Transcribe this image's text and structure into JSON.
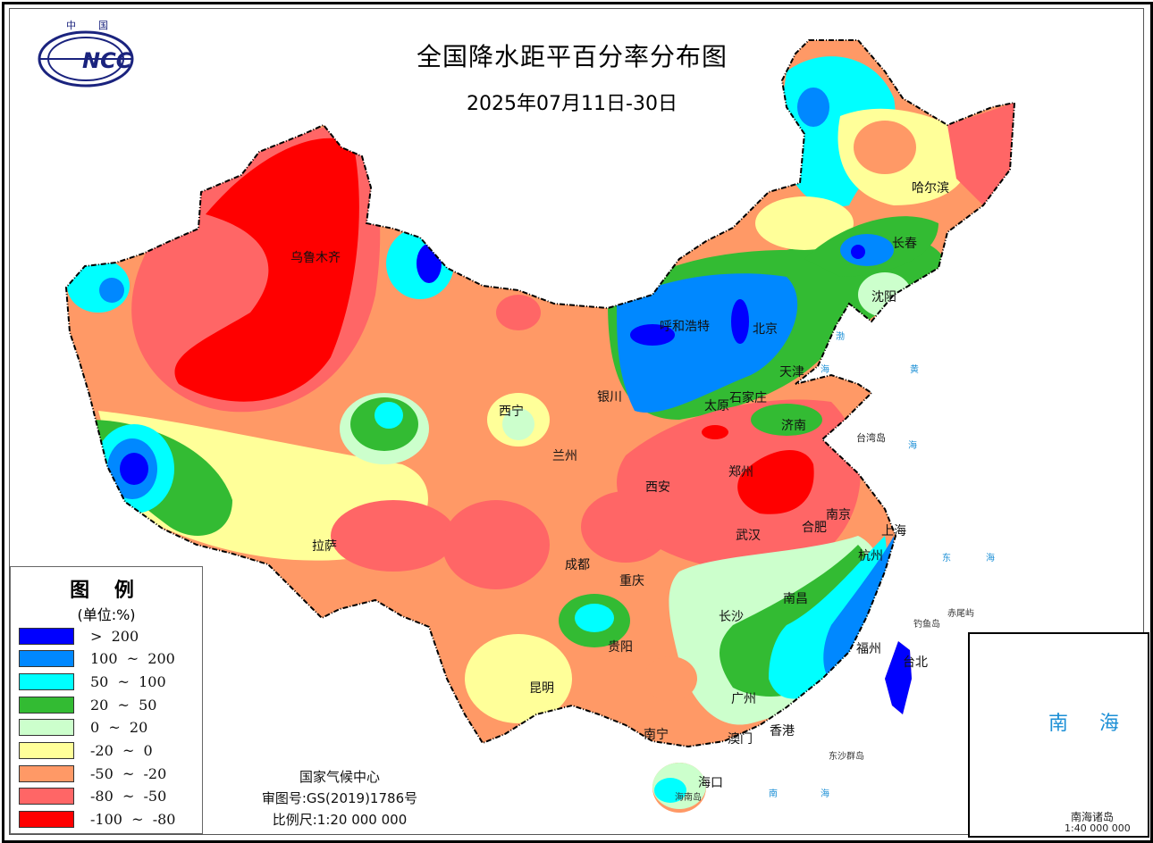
{
  "header": {
    "logo_text": "中国 NCC",
    "title": "全国降水距平百分率分布图",
    "date_range": "2025年07月11日-30日"
  },
  "legend": {
    "title": "图 例",
    "unit": "(单位:%)",
    "items": [
      {
        "label": ">  200",
        "color": "#0000ff"
      },
      {
        "label": "100  ~  200",
        "color": "#0088ff"
      },
      {
        "label": "50  ~  100",
        "color": "#00ffff"
      },
      {
        "label": "20  ~  50",
        "color": "#33bb33"
      },
      {
        "label": "0  ~  20",
        "color": "#ccffcc"
      },
      {
        "label": "-20  ~  0",
        "color": "#ffff99"
      },
      {
        "label": "-50  ~  -20",
        "color": "#ff9966"
      },
      {
        "label": "-80  ~  -50",
        "color": "#ff6666"
      },
      {
        "label": "-100  ~  -80",
        "color": "#ff0000"
      }
    ]
  },
  "credits": {
    "agency": "国家气候中心",
    "map_approval": "审图号:GS(2019)1786号",
    "scale": "比例尺:1:20 000 000"
  },
  "cities": [
    "乌鲁木齐",
    "哈尔滨",
    "长春",
    "沈阳",
    "呼和浩特",
    "北京",
    "天津",
    "银川",
    "石家庄",
    "太原",
    "西宁",
    "济南",
    "兰州",
    "郑州",
    "西安",
    "南京",
    "合肥",
    "上海",
    "拉萨",
    "武汉",
    "成都",
    "杭州",
    "重庆",
    "南昌",
    "长沙",
    "贵阳",
    "福州",
    "台北",
    "昆明",
    "广州",
    "香港",
    "澳门",
    "南宁",
    "海口"
  ],
  "labels": {
    "taiwan": "台湾岛",
    "diaoyu": "钓鱼岛",
    "chiwei": "赤尾屿",
    "dongsha": "东沙群岛",
    "hainan": "海南岛",
    "bohai": [
      "渤",
      "海"
    ],
    "yellow_sea": [
      "黄",
      "海"
    ],
    "east_sea": [
      "东",
      "海"
    ],
    "south_sea": [
      "南",
      "海"
    ]
  },
  "inset": {
    "sea_label": "南 海",
    "name": "南海诸岛",
    "scale": "1:40 000 000"
  }
}
